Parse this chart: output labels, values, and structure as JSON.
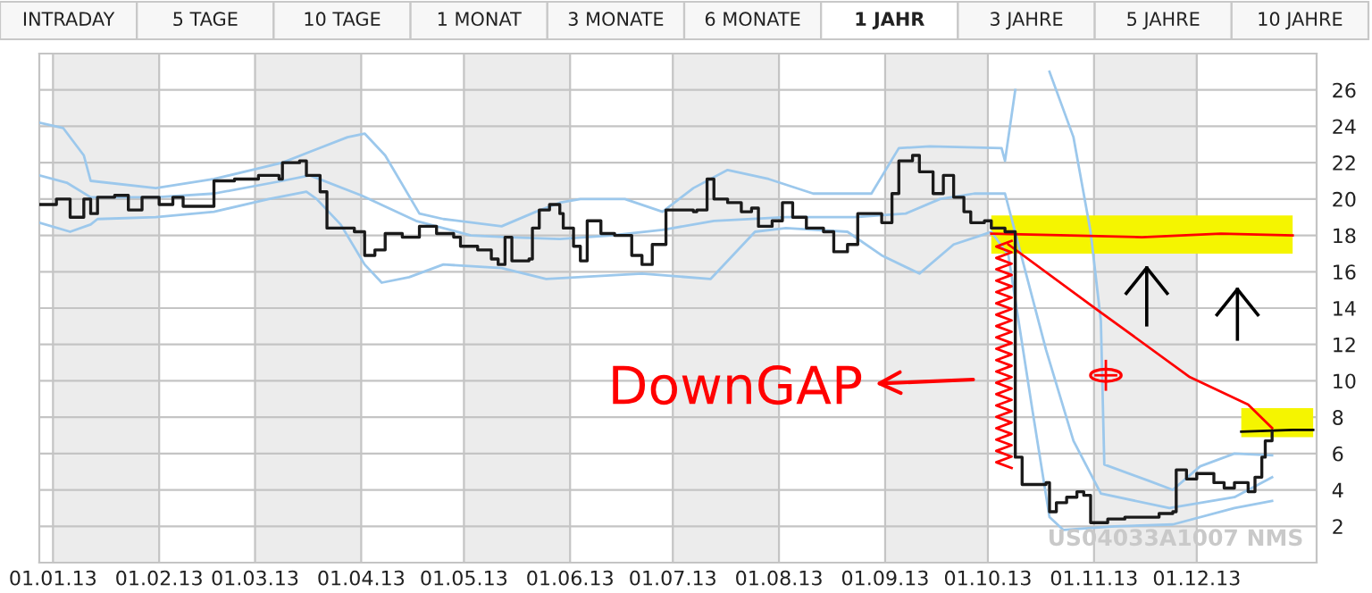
{
  "chart_data": {
    "type": "step",
    "annotations": [
      "INTRADAY",
      "5 TAGE",
      "10 TAGE",
      "1 MONAT",
      "3 MONATE",
      "6 MONATE",
      "1 JAHR",
      "3 JAHRE",
      "5 JAHRE",
      "10 JAHRE",
      "US04033A1007 NMS",
      "DownGAP"
    ],
    "xlim": [
      "2012-12-28",
      "2014-01-05"
    ],
    "xticks": [
      {
        "value": "2013-01-01",
        "label": "01.01.13"
      },
      {
        "value": "2013-02-01",
        "label": "01.02.13"
      },
      {
        "value": "2013-03-01",
        "label": "01.03.13"
      },
      {
        "value": "2013-04-01",
        "label": "01.04.13"
      },
      {
        "value": "2013-05-01",
        "label": "01.05.13"
      },
      {
        "value": "2013-06-01",
        "label": "01.06.13"
      },
      {
        "value": "2013-07-01",
        "label": "01.07.13"
      },
      {
        "value": "2013-08-01",
        "label": "01.08.13"
      },
      {
        "value": "2013-09-01",
        "label": "01.09.13"
      },
      {
        "value": "2013-10-01",
        "label": "01.10.13"
      },
      {
        "value": "2013-11-01",
        "label": "01.11.13"
      },
      {
        "value": "2013-12-01",
        "label": "01.12.13"
      }
    ],
    "ylim": [
      0,
      28
    ],
    "yticks": [
      2,
      4,
      6,
      8,
      10,
      12,
      14,
      16,
      18,
      20,
      22,
      24,
      26
    ],
    "grid": true,
    "bands": [
      {
        "axis": "x",
        "from": "2013-01-01",
        "to": "2013-02-01",
        "color": "#ececec"
      },
      {
        "axis": "x",
        "from": "2013-03-01",
        "to": "2013-04-01",
        "color": "#ececec"
      },
      {
        "axis": "x",
        "from": "2013-05-01",
        "to": "2013-06-01",
        "color": "#ececec"
      },
      {
        "axis": "x",
        "from": "2013-07-01",
        "to": "2013-08-01",
        "color": "#ececec"
      },
      {
        "axis": "x",
        "from": "2013-09-01",
        "to": "2013-10-01",
        "color": "#ececec"
      },
      {
        "axis": "x",
        "from": "2013-11-01",
        "to": "2013-12-01",
        "color": "#ececec"
      }
    ],
    "series": [
      {
        "type": "line",
        "color": "#9cc8ec",
        "x": [
          "2012-12-28",
          "2013-01-04",
          "2013-01-10",
          "2013-01-12",
          "2013-01-31",
          "2013-02-17",
          "2013-03-09",
          "2013-03-17",
          "2013-03-28",
          "2013-04-02",
          "2013-04-08",
          "2013-04-18",
          "2013-04-25",
          "2013-05-12",
          "2013-05-22",
          "2013-05-29",
          "2013-06-04",
          "2013-06-17",
          "2013-06-28",
          "2013-07-07",
          "2013-07-17",
          "2013-07-29",
          "2013-08-11",
          "2013-08-28",
          "2013-09-05",
          "2013-09-14",
          "2013-10-05",
          "2013-10-06",
          "2013-10-09",
          "2013-10-11",
          "2013-10-14",
          "2013-10-16",
          "2013-10-19",
          "2013-10-26",
          "2013-10-31",
          "2013-11-03",
          "2013-11-04",
          "2013-11-17",
          "2013-11-24",
          "2013-12-02",
          "2013-12-12",
          "2013-12-23"
        ],
        "values": [
          24.2,
          23.9,
          22.4,
          21.0,
          20.6,
          21.1,
          22.0,
          22.6,
          23.4,
          23.6,
          22.4,
          19.2,
          18.9,
          18.5,
          19.3,
          19.8,
          20.0,
          20.0,
          19.3,
          20.6,
          21.6,
          21.1,
          20.3,
          20.3,
          22.8,
          22.9,
          22.8,
          22.1,
          26.0,
          null,
          null,
          null,
          27.0,
          23.4,
          18.2,
          13.3,
          5.4,
          4.5,
          4.0,
          5.3,
          6.0,
          5.9
        ]
      },
      {
        "type": "line",
        "color": "#9cc8ec",
        "x": [
          "2012-12-28",
          "2013-01-05",
          "2013-01-12",
          "2013-01-31",
          "2013-02-17",
          "2013-03-09",
          "2013-03-17",
          "2013-04-01",
          "2013-04-17",
          "2013-05-03",
          "2013-05-14",
          "2013-05-29",
          "2013-06-13",
          "2013-06-28",
          "2013-07-13",
          "2013-08-03",
          "2013-08-23",
          "2013-09-07",
          "2013-09-17",
          "2013-09-27",
          "2013-10-06",
          "2013-10-18",
          "2013-10-26",
          "2013-11-03",
          "2013-11-23",
          "2013-12-12",
          "2013-12-23"
        ],
        "values": [
          21.3,
          20.9,
          20.1,
          20.1,
          20.3,
          21.0,
          21.3,
          20.2,
          18.8,
          18.0,
          17.9,
          17.8,
          18.0,
          18.3,
          18.8,
          19.0,
          19.0,
          19.2,
          20.0,
          20.3,
          20.3,
          11.7,
          6.7,
          3.8,
          3.0,
          3.6,
          4.7
        ]
      },
      {
        "type": "line",
        "color": "#9cc8ec",
        "x": [
          "2012-12-28",
          "2013-01-06",
          "2013-01-12",
          "2013-01-14",
          "2013-01-31",
          "2013-02-17",
          "2013-03-05",
          "2013-03-16",
          "2013-03-19",
          "2013-03-26",
          "2013-04-02",
          "2013-04-07",
          "2013-04-15",
          "2013-04-25",
          "2013-05-12",
          "2013-05-25",
          "2013-06-22",
          "2013-07-12",
          "2013-07-25",
          "2013-08-03",
          "2013-08-21",
          "2013-08-31",
          "2013-09-11",
          "2013-09-21",
          "2013-09-29",
          "2013-10-02",
          "2013-10-07",
          "2013-10-14",
          "2013-10-19",
          "2013-10-23",
          "2013-11-07",
          "2013-11-24",
          "2013-12-12",
          "2013-12-23"
        ],
        "values": [
          18.7,
          18.2,
          18.6,
          18.9,
          19.0,
          19.3,
          20.0,
          20.4,
          20.0,
          18.6,
          16.4,
          15.4,
          15.7,
          16.4,
          16.2,
          15.6,
          15.9,
          15.6,
          18.2,
          18.4,
          18.2,
          16.9,
          15.9,
          17.5,
          18.0,
          18.2,
          16.9,
          8.4,
          2.5,
          1.8,
          2.0,
          2.1,
          3.0,
          3.4
        ]
      },
      {
        "color": "#1a1a1a",
        "x": [
          "2012-12-28",
          "2013-01-02",
          "2013-01-06",
          "2013-01-10",
          "2013-01-12",
          "2013-01-14",
          "2013-01-19",
          "2013-01-23",
          "2013-01-27",
          "2013-02-01",
          "2013-02-05",
          "2013-02-08",
          "2013-02-17",
          "2013-02-23",
          "2013-03-02",
          "2013-03-08",
          "2013-03-09",
          "2013-03-14",
          "2013-03-16",
          "2013-03-20",
          "2013-03-22",
          "2013-03-30",
          "2013-04-02",
          "2013-04-05",
          "2013-04-08",
          "2013-04-13",
          "2013-04-18",
          "2013-04-23",
          "2013-04-28",
          "2013-04-30",
          "2013-05-05",
          "2013-05-09",
          "2013-05-11",
          "2013-05-13",
          "2013-05-15",
          "2013-05-20",
          "2013-05-21",
          "2013-05-23",
          "2013-05-26",
          "2013-05-29",
          "2013-05-30",
          "2013-06-02",
          "2013-06-04",
          "2013-06-06",
          "2013-06-10",
          "2013-06-14",
          "2013-06-19",
          "2013-06-22",
          "2013-06-25",
          "2013-06-29",
          "2013-07-07",
          "2013-07-08",
          "2013-07-11",
          "2013-07-13",
          "2013-07-17",
          "2013-07-21",
          "2013-07-24",
          "2013-07-26",
          "2013-07-30",
          "2013-08-02",
          "2013-08-05",
          "2013-08-09",
          "2013-08-14",
          "2013-08-17",
          "2013-08-21",
          "2013-08-24",
          "2013-08-31",
          "2013-09-03",
          "2013-09-05",
          "2013-09-09",
          "2013-09-11",
          "2013-09-15",
          "2013-09-18",
          "2013-09-21",
          "2013-09-24",
          "2013-09-26",
          "2013-09-30",
          "2013-10-02",
          "2013-10-06",
          "2013-10-09",
          "2013-10-11",
          "2013-10-18",
          "2013-10-19",
          "2013-10-21",
          "2013-10-24",
          "2013-10-27",
          "2013-10-29",
          "2013-10-31",
          "2013-11-05",
          "2013-11-10",
          "2013-11-20",
          "2013-11-24",
          "2013-11-25",
          "2013-11-28",
          "2013-12-01",
          "2013-12-06",
          "2013-12-09",
          "2013-12-12",
          "2013-12-16",
          "2013-12-18",
          "2013-12-20",
          "2013-12-21",
          "2013-12-23"
        ],
        "values": [
          19.7,
          20.0,
          19.0,
          20.0,
          19.2,
          20.1,
          20.2,
          19.4,
          20.1,
          19.7,
          20.1,
          19.6,
          21.0,
          21.1,
          21.3,
          21.1,
          22.0,
          22.1,
          21.3,
          20.4,
          18.4,
          18.2,
          16.9,
          17.2,
          18.1,
          17.9,
          18.5,
          18.1,
          17.9,
          17.4,
          17.2,
          16.7,
          16.4,
          17.9,
          16.6,
          16.7,
          18.4,
          19.4,
          19.7,
          19.2,
          18.4,
          17.4,
          16.6,
          18.8,
          18.1,
          18.0,
          16.9,
          16.4,
          17.5,
          19.4,
          19.3,
          19.4,
          21.1,
          20.0,
          19.8,
          19.3,
          19.5,
          18.5,
          18.8,
          19.8,
          19.0,
          18.4,
          18.2,
          17.1,
          17.5,
          19.2,
          18.7,
          20.3,
          22.1,
          22.4,
          21.5,
          20.3,
          21.3,
          20.1,
          19.3,
          18.7,
          18.8,
          18.4,
          18.2,
          5.8,
          4.3,
          4.4,
          2.8,
          3.3,
          3.6,
          3.9,
          3.7,
          2.2,
          2.4,
          2.5,
          2.7,
          2.8,
          5.1,
          4.6,
          4.9,
          4.4,
          4.1,
          4.4,
          3.9,
          4.7,
          5.8,
          6.7,
          7.2
        ]
      },
      {
        "type": "line",
        "color": "#ff0000",
        "x": [
          "2013-10-02",
          "2013-10-25",
          "2013-11-15",
          "2013-12-08",
          "2013-12-29"
        ],
        "values": [
          18.1,
          18.0,
          17.9,
          18.1,
          18.0
        ],
        "lower": [
          17.0,
          17.0,
          17.0,
          17.0,
          17.0
        ],
        "upper": [
          19.1,
          19.1,
          19.1,
          19.1,
          19.1
        ]
      },
      {
        "type": "line",
        "color": "#ff0000",
        "x": [
          "2013-10-07",
          "2013-11-02",
          "2013-11-29",
          "2013-12-16",
          "2013-12-23"
        ],
        "values": [
          17.5,
          13.9,
          10.2,
          8.7,
          7.4
        ]
      },
      {
        "type": "line",
        "color": "#000000",
        "x": [
          "2013-12-14",
          "2013-12-29",
          "2014-01-04"
        ],
        "values": [
          7.2,
          7.3,
          7.3
        ],
        "lower": [
          6.9,
          6.9,
          6.9
        ],
        "upper": [
          8.5,
          8.5,
          8.5
        ]
      }
    ]
  }
}
